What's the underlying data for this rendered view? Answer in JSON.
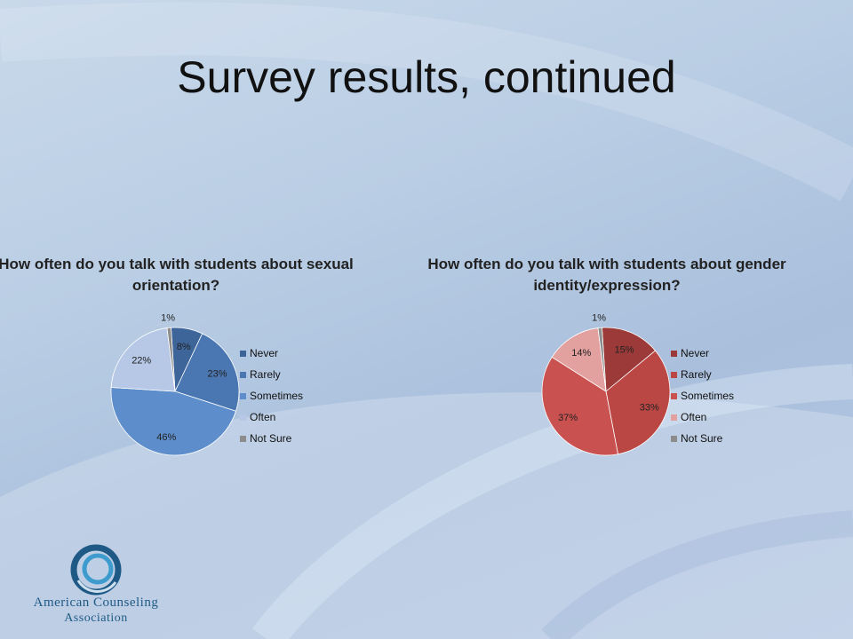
{
  "slide": {
    "title": "Survey results, continued"
  },
  "logo": {
    "line1": "American Counseling",
    "line2": "Association"
  },
  "chart_data": [
    {
      "type": "pie",
      "title": "How often do you talk with students about sexual orientation?",
      "categories": [
        "Never",
        "Rarely",
        "Sometimes",
        "Often",
        "Not Sure"
      ],
      "values": [
        8,
        23,
        46,
        22,
        1
      ],
      "data_labels": [
        "8%",
        "23%",
        "46%",
        "22%",
        "1%"
      ],
      "colors": [
        "#3d6599",
        "#4a77b2",
        "#5d8dcb",
        "#b6c8e6",
        "#8c8c8c"
      ],
      "legend_position": "right"
    },
    {
      "type": "pie",
      "title": "How often do you talk with students about gender identity/expression?",
      "categories": [
        "Never",
        "Rarely",
        "Sometimes",
        "Often",
        "Not Sure"
      ],
      "values": [
        15,
        33,
        37,
        14,
        1
      ],
      "data_labels": [
        "15%",
        "33%",
        "37%",
        "14%",
        "1%"
      ],
      "colors": [
        "#9b3a38",
        "#bb4745",
        "#c9514f",
        "#e2a19f",
        "#8c8c8c"
      ],
      "legend_position": "right"
    }
  ]
}
